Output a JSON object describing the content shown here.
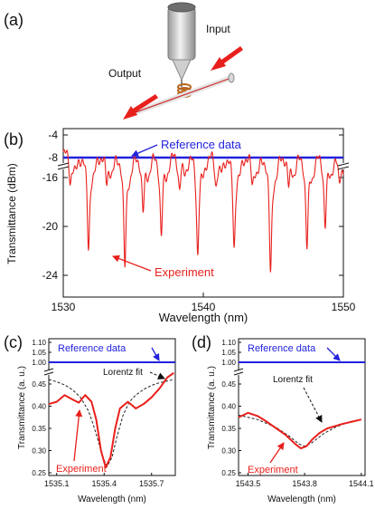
{
  "panel_a": {
    "label": "(a)",
    "input_label": "Input",
    "output_label": "Output",
    "colors": {
      "arrow": "#e8201c",
      "cylinder": "#d9d9d9",
      "fiber": "#cc3333"
    }
  },
  "chart_data": [
    {
      "id": "b",
      "panel_label": "(b)",
      "type": "line",
      "xlabel": "Wavelength (nm)",
      "ylabel": "Transmittance (dBm)",
      "xlim": [
        1530,
        1550
      ],
      "ylim": [
        -25.5,
        -3
      ],
      "axis_break": true,
      "xticks": [
        "1530",
        "1540",
        "1550"
      ],
      "yticks_upper": [
        "-4",
        "-8"
      ],
      "yticks_lower": [
        "-16",
        "-20",
        "-24"
      ],
      "grid": false,
      "series": [
        {
          "name": "Reference data",
          "color": "#2222dd",
          "x": [
            1530,
            1535,
            1540,
            1545,
            1550
          ],
          "y": [
            -8.0,
            -8.0,
            -8.0,
            -8.0,
            -8.0
          ]
        },
        {
          "name": "Experiment",
          "color": "#e8201c",
          "baseline": -13.6,
          "dips_x": [
            1530.5,
            1531.8,
            1533.1,
            1534.4,
            1535.7,
            1537.0,
            1538.3,
            1539.6,
            1540.9,
            1542.2,
            1543.5,
            1544.8,
            1546.1,
            1547.4,
            1548.7,
            1549.7
          ],
          "dips_y": [
            -15.8,
            -21.2,
            -15.9,
            -22.8,
            -18.3,
            -20.2,
            -16.2,
            -21.6,
            -15.9,
            -21.1,
            -16.0,
            -23.3,
            -16.2,
            -21.2,
            -19.3,
            -15.8
          ]
        }
      ],
      "annotations": [
        "Reference data",
        "Experiment"
      ]
    },
    {
      "id": "c",
      "panel_label": "(c)",
      "type": "line",
      "xlabel": "Wavelength (nm)",
      "ylabel": "Transmittance (a. u.)",
      "xlim": [
        1535.05,
        1535.85
      ],
      "ylim": [
        0.25,
        1.1
      ],
      "axis_break": true,
      "xticks": [
        1535.1,
        1535.4,
        1535.7
      ],
      "xtick_labels": [
        "1535.1",
        "1535.4",
        "1535.7"
      ],
      "yticks_upper": [
        "1.10",
        "1.05",
        "1.00"
      ],
      "yticks_lower": [
        "0.45",
        "0.40",
        "0.35",
        "0.30",
        "0.25"
      ],
      "series": [
        {
          "name": "Reference data",
          "color": "#2222dd",
          "x": [
            1535.05,
            1535.85
          ],
          "y": [
            1.0,
            1.0
          ]
        },
        {
          "name": "Experiment",
          "color": "#e8201c",
          "x": [
            1535.05,
            1535.1,
            1535.15,
            1535.2,
            1535.24,
            1535.28,
            1535.32,
            1535.35,
            1535.38,
            1535.41,
            1535.44,
            1535.47,
            1535.5,
            1535.55,
            1535.6,
            1535.65,
            1535.7,
            1535.75,
            1535.8,
            1535.84
          ],
          "y": [
            0.405,
            0.41,
            0.425,
            0.415,
            0.408,
            0.425,
            0.41,
            0.37,
            0.3,
            0.262,
            0.285,
            0.35,
            0.395,
            0.41,
            0.395,
            0.405,
            0.42,
            0.44,
            0.465,
            0.475
          ]
        },
        {
          "name": "Lorentz fit",
          "color": "#222222",
          "x": [
            1535.05,
            1535.1,
            1535.15,
            1535.2,
            1535.25,
            1535.3,
            1535.33,
            1535.36,
            1535.39,
            1535.42,
            1535.45,
            1535.48,
            1535.52,
            1535.56,
            1535.6,
            1535.65,
            1535.7,
            1535.75,
            1535.84
          ],
          "y": [
            0.46,
            0.455,
            0.448,
            0.437,
            0.42,
            0.39,
            0.36,
            0.325,
            0.285,
            0.265,
            0.285,
            0.33,
            0.38,
            0.41,
            0.425,
            0.438,
            0.447,
            0.453,
            0.46
          ]
        }
      ],
      "annotations": [
        "Reference data",
        "Lorentz fit",
        "Experiment"
      ]
    },
    {
      "id": "d",
      "panel_label": "(d)",
      "type": "line",
      "xlabel": "Wavelength (nm)",
      "ylabel": "Transmittance (a. u.)",
      "xlim": [
        1543.45,
        1544.12
      ],
      "ylim": [
        0.25,
        1.1
      ],
      "axis_break": true,
      "xticks": [
        1543.5,
        1543.8,
        1544.1
      ],
      "xtick_labels": [
        "1543.5",
        "1543.8",
        "1544.1"
      ],
      "yticks_upper": [
        "1.10",
        "1.05",
        "1.00"
      ],
      "yticks_lower": [
        "0.45",
        "0.40",
        "0.35",
        "0.30",
        "0.25"
      ],
      "series": [
        {
          "name": "Reference data",
          "color": "#2222dd",
          "x": [
            1543.45,
            1544.12
          ],
          "y": [
            1.0,
            1.0
          ]
        },
        {
          "name": "Experiment",
          "color": "#e8201c",
          "x": [
            1543.45,
            1543.5,
            1543.55,
            1543.6,
            1543.65,
            1543.7,
            1543.75,
            1543.78,
            1543.81,
            1543.84,
            1543.88,
            1543.92,
            1543.96,
            1544.0,
            1544.05,
            1544.1
          ],
          "y": [
            0.375,
            0.385,
            0.378,
            0.365,
            0.35,
            0.335,
            0.315,
            0.305,
            0.31,
            0.325,
            0.34,
            0.35,
            0.355,
            0.36,
            0.365,
            0.37
          ]
        },
        {
          "name": "Lorentz fit",
          "color": "#222222",
          "x": [
            1543.45,
            1543.55,
            1543.65,
            1543.72,
            1543.77,
            1543.8,
            1543.84,
            1543.9,
            1543.96,
            1544.02,
            1544.1
          ],
          "y": [
            0.38,
            0.37,
            0.352,
            0.332,
            0.315,
            0.31,
            0.318,
            0.338,
            0.352,
            0.362,
            0.37
          ]
        }
      ],
      "annotations": [
        "Reference data",
        "Lorentz fit",
        "Experiment"
      ]
    }
  ]
}
